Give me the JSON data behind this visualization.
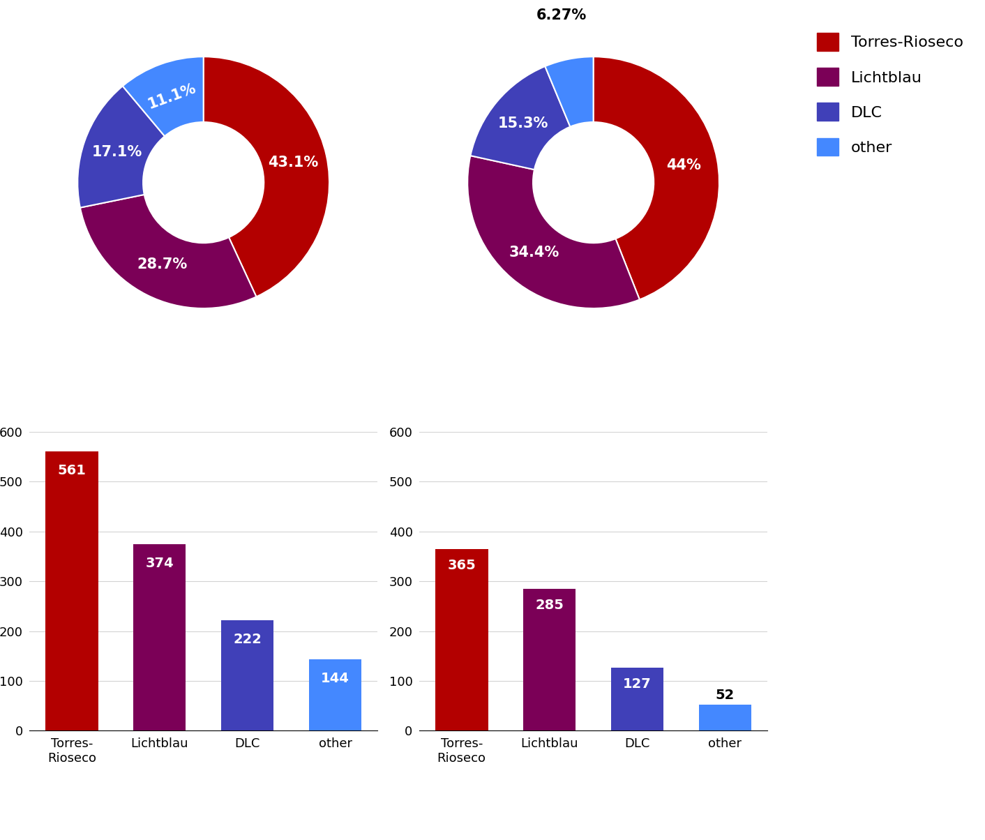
{
  "pie1": {
    "values": [
      43.1,
      28.7,
      17.1,
      11.1
    ],
    "labels": [
      "43.1%",
      "28.7%",
      "17.1%",
      "11.1%"
    ],
    "startangle": 90,
    "label_inside": [
      true,
      true,
      true,
      true
    ],
    "label_rotation": [
      0,
      0,
      0,
      -60
    ]
  },
  "pie2": {
    "values": [
      44.0,
      34.4,
      15.3,
      6.27
    ],
    "labels": [
      "44%",
      "34.4%",
      "15.3%",
      "6.27%"
    ],
    "startangle": 90,
    "label_inside": [
      true,
      true,
      true,
      false
    ]
  },
  "bar1": {
    "values": [
      561,
      374,
      222,
      144
    ],
    "ylim": [
      0,
      600
    ],
    "yticks": [
      0,
      100,
      200,
      300,
      400,
      500,
      600
    ]
  },
  "bar2": {
    "values": [
      365,
      285,
      127,
      52
    ],
    "ylim": [
      0,
      600
    ],
    "yticks": [
      0,
      100,
      200,
      300,
      400,
      500,
      600
    ]
  },
  "categories": [
    "Torres-\nRioseco",
    "Lichtblau",
    "DLC",
    "other"
  ],
  "legend_labels": [
    "Torres-Rioseco",
    "Lichtblau",
    "DLC",
    "other"
  ],
  "colors": [
    "#b30000",
    "#7b0057",
    "#4040b8",
    "#4488ff"
  ],
  "text_color": "white",
  "label_fontsize": 15,
  "bar_label_fontsize": 14,
  "tick_fontsize": 13,
  "legend_fontsize": 16
}
